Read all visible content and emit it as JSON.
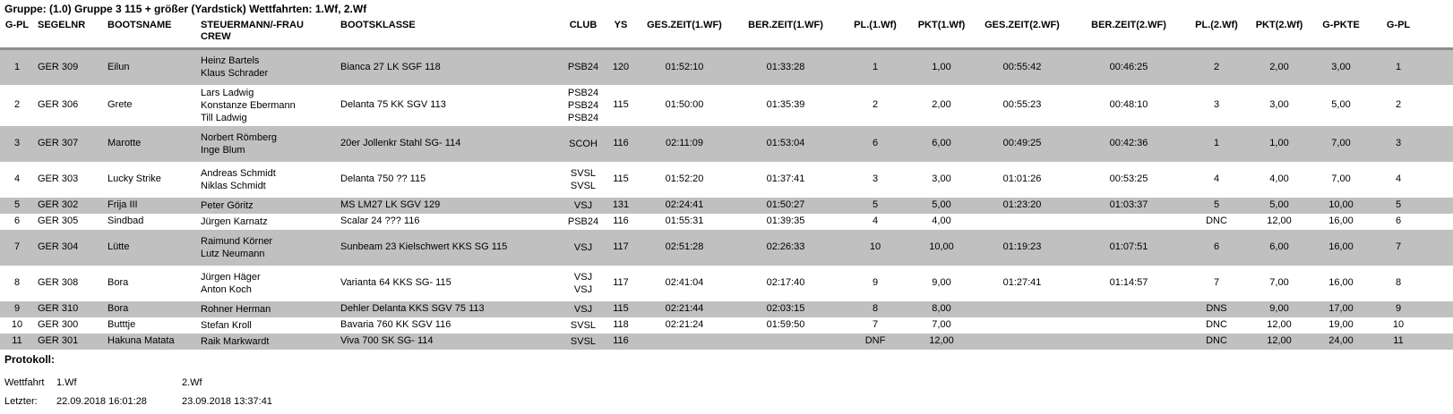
{
  "title": "Gruppe: (1.0) Gruppe 3 115 + größer (Yardstick) Wettfahrten: 1.Wf, 2.Wf",
  "colors": {
    "row_stripe": "#c0c0c0",
    "header_separator": "#8e8e8e",
    "text": "#000000",
    "background": "#ffffff"
  },
  "table": {
    "columns": [
      {
        "key": "g-pl",
        "label": "G-PL"
      },
      {
        "key": "segelnr",
        "label": "SEGELNR"
      },
      {
        "key": "bootsname",
        "label": "BOOTSNAME"
      },
      {
        "key": "steuermann-crew",
        "label": [
          "STEUERMANN/-FRAU",
          "CREW"
        ]
      },
      {
        "key": "bootsklasse",
        "label": "BOOTSKLASSE"
      },
      {
        "key": "club",
        "label": "CLUB"
      },
      {
        "key": "ys",
        "label": "YS"
      },
      {
        "key": "ges-zeit-1wf",
        "label": "GES.ZEIT(1.WF)"
      },
      {
        "key": "ber-zeit-1wf",
        "label": "BER.ZEIT(1.WF)"
      },
      {
        "key": "pl-1wf",
        "label": "PL.(1.Wf)"
      },
      {
        "key": "pkt-1wf",
        "label": "PKT(1.Wf)"
      },
      {
        "key": "ges-zeit-2wf",
        "label": "GES.ZEIT(2.WF)"
      },
      {
        "key": "ber-zeit-2wf",
        "label": "BER.ZEIT(2.WF)"
      },
      {
        "key": "pl-2wf",
        "label": "PL.(2.Wf)"
      },
      {
        "key": "pkt-2wf",
        "label": "PKT(2.Wf)"
      },
      {
        "key": "g-pkte",
        "label": "G-PKTE"
      },
      {
        "key": "g-pl-gesamt",
        "label": "G-PL"
      }
    ],
    "rows": [
      {
        "cells": [
          "1",
          "GER 309",
          "Eilun",
          [
            "Heinz Bartels",
            "Klaus Schrader"
          ],
          "Bianca 27 LK SGF 118",
          [
            "PSB24"
          ],
          "120",
          "01:52:10",
          "01:33:28",
          "1",
          "1,00",
          "00:55:42",
          "00:46:25",
          "2",
          "2,00",
          "3,00",
          "1"
        ]
      },
      {
        "cells": [
          "2",
          "GER 306",
          "Grete",
          [
            "Lars Ladwig",
            "Konstanze Ebermann",
            "Till Ladwig"
          ],
          "Delanta 75 KK SGV 113",
          [
            "PSB24",
            "PSB24",
            "PSB24"
          ],
          "115",
          "01:50:00",
          "01:35:39",
          "2",
          "2,00",
          "00:55:23",
          "00:48:10",
          "3",
          "3,00",
          "5,00",
          "2"
        ]
      },
      {
        "cells": [
          "3",
          "GER 307",
          "Marotte",
          [
            "Norbert Römberg",
            "Inge Blum"
          ],
          "20er Jollenkr Stahl SG- 114",
          [
            "SCOH"
          ],
          "116",
          "02:11:09",
          "01:53:04",
          "6",
          "6,00",
          "00:49:25",
          "00:42:36",
          "1",
          "1,00",
          "7,00",
          "3"
        ]
      },
      {
        "cells": [
          "4",
          "GER 303",
          "Lucky Strike",
          [
            "Andreas Schmidt",
            "Niklas Schmidt"
          ],
          "Delanta 750 ?? 115",
          [
            "SVSL",
            "SVSL"
          ],
          "115",
          "01:52:20",
          "01:37:41",
          "3",
          "3,00",
          "01:01:26",
          "00:53:25",
          "4",
          "4,00",
          "7,00",
          "4"
        ]
      },
      {
        "cells": [
          "5",
          "GER 302",
          "Frija III",
          [
            "Peter Göritz"
          ],
          "MS LM27 LK SGV 129",
          [
            "VSJ"
          ],
          "131",
          "02:24:41",
          "01:50:27",
          "5",
          "5,00",
          "01:23:20",
          "01:03:37",
          "5",
          "5,00",
          "10,00",
          "5"
        ]
      },
      {
        "cells": [
          "6",
          "GER 305",
          "Sindbad",
          [
            "Jürgen Karnatz"
          ],
          "Scalar 24 ??? 116",
          [
            "PSB24"
          ],
          "116",
          "01:55:31",
          "01:39:35",
          "4",
          "4,00",
          "",
          "",
          "DNC",
          "12,00",
          "16,00",
          "6"
        ]
      },
      {
        "cells": [
          "7",
          "GER 304",
          "Lütte",
          [
            "Raimund Körner",
            "Lutz Neumann"
          ],
          "Sunbeam 23 Kielschwert KKS SG 115",
          [
            "VSJ"
          ],
          "117",
          "02:51:28",
          "02:26:33",
          "10",
          "10,00",
          "01:19:23",
          "01:07:51",
          "6",
          "6,00",
          "16,00",
          "7"
        ]
      },
      {
        "cells": [
          "8",
          "GER 308",
          "Bora",
          [
            "Jürgen Häger",
            "Anton Koch"
          ],
          "Varianta 64 KKS SG- 115",
          [
            "VSJ",
            "VSJ"
          ],
          "117",
          "02:41:04",
          "02:17:40",
          "9",
          "9,00",
          "01:27:41",
          "01:14:57",
          "7",
          "7,00",
          "16,00",
          "8"
        ]
      },
      {
        "cells": [
          "9",
          "GER 310",
          "Bora",
          [
            "Rohner Herman"
          ],
          "Dehler Delanta KKS SGV 75 113",
          [
            "VSJ"
          ],
          "115",
          "02:21:44",
          "02:03:15",
          "8",
          "8,00",
          "",
          "",
          "DNS",
          "9,00",
          "17,00",
          "9"
        ]
      },
      {
        "cells": [
          "10",
          "GER 300",
          "Butttje",
          [
            "Stefan Kroll"
          ],
          "Bavaria 760 KK SGV 116",
          [
            "SVSL"
          ],
          "118",
          "02:21:24",
          "01:59:50",
          "7",
          "7,00",
          "",
          "",
          "DNC",
          "12,00",
          "19,00",
          "10"
        ]
      },
      {
        "cells": [
          "11",
          "GER 301",
          "Hakuna Matata",
          [
            "Raik Markwardt"
          ],
          "Viva 700 SK SG- 114",
          [
            "SVSL"
          ],
          "116",
          "",
          "",
          "DNF",
          "12,00",
          "",
          "",
          "DNC",
          "12,00",
          "24,00",
          "11"
        ]
      }
    ]
  },
  "footer": {
    "protokoll_label": "Protokoll:",
    "wettfahrt": {
      "label": "Wettfahrt",
      "wf1": "1.Wf",
      "wf2": "2.Wf"
    },
    "letzter": {
      "label": "Letzter:",
      "datum1": "22.09.2018 16:01:28",
      "datum2": "23.09.2018 13:37:41"
    }
  }
}
